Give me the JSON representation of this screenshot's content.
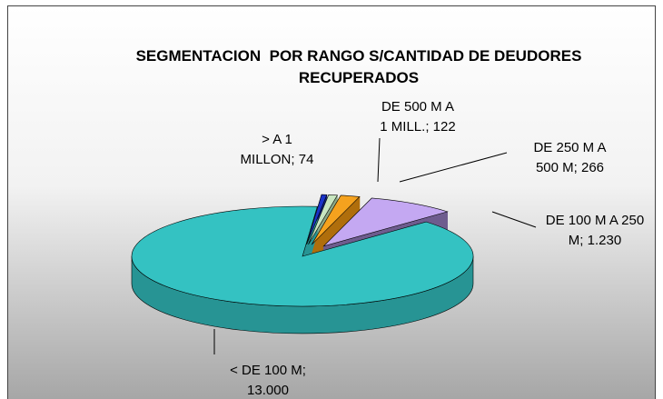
{
  "chart_data": {
    "type": "pie",
    "title": "SEGMENTACION  POR RANGO S/CANTIDAD DE DEUDORES RECUPERADOS",
    "categories": [
      "> A 1 MILLON",
      "DE 500 M A 1 MILL.",
      "DE 250 M A 500 M",
      "DE 100 M A 250 M",
      "< DE 100 M"
    ],
    "values": [
      74,
      122,
      266,
      1230,
      13000
    ],
    "value_labels": [
      "74",
      "122",
      "266",
      "1.230",
      "13.000"
    ],
    "label_separator": "; ",
    "colors": [
      "#1a33c8",
      "#c8e6c0",
      "#f5a21e",
      "#c4a8f2",
      "#34c2c2"
    ],
    "side_colors": [
      "#0d1f80",
      "#8aa886",
      "#b06e0c",
      "#6e5c8e",
      "#279494"
    ]
  }
}
